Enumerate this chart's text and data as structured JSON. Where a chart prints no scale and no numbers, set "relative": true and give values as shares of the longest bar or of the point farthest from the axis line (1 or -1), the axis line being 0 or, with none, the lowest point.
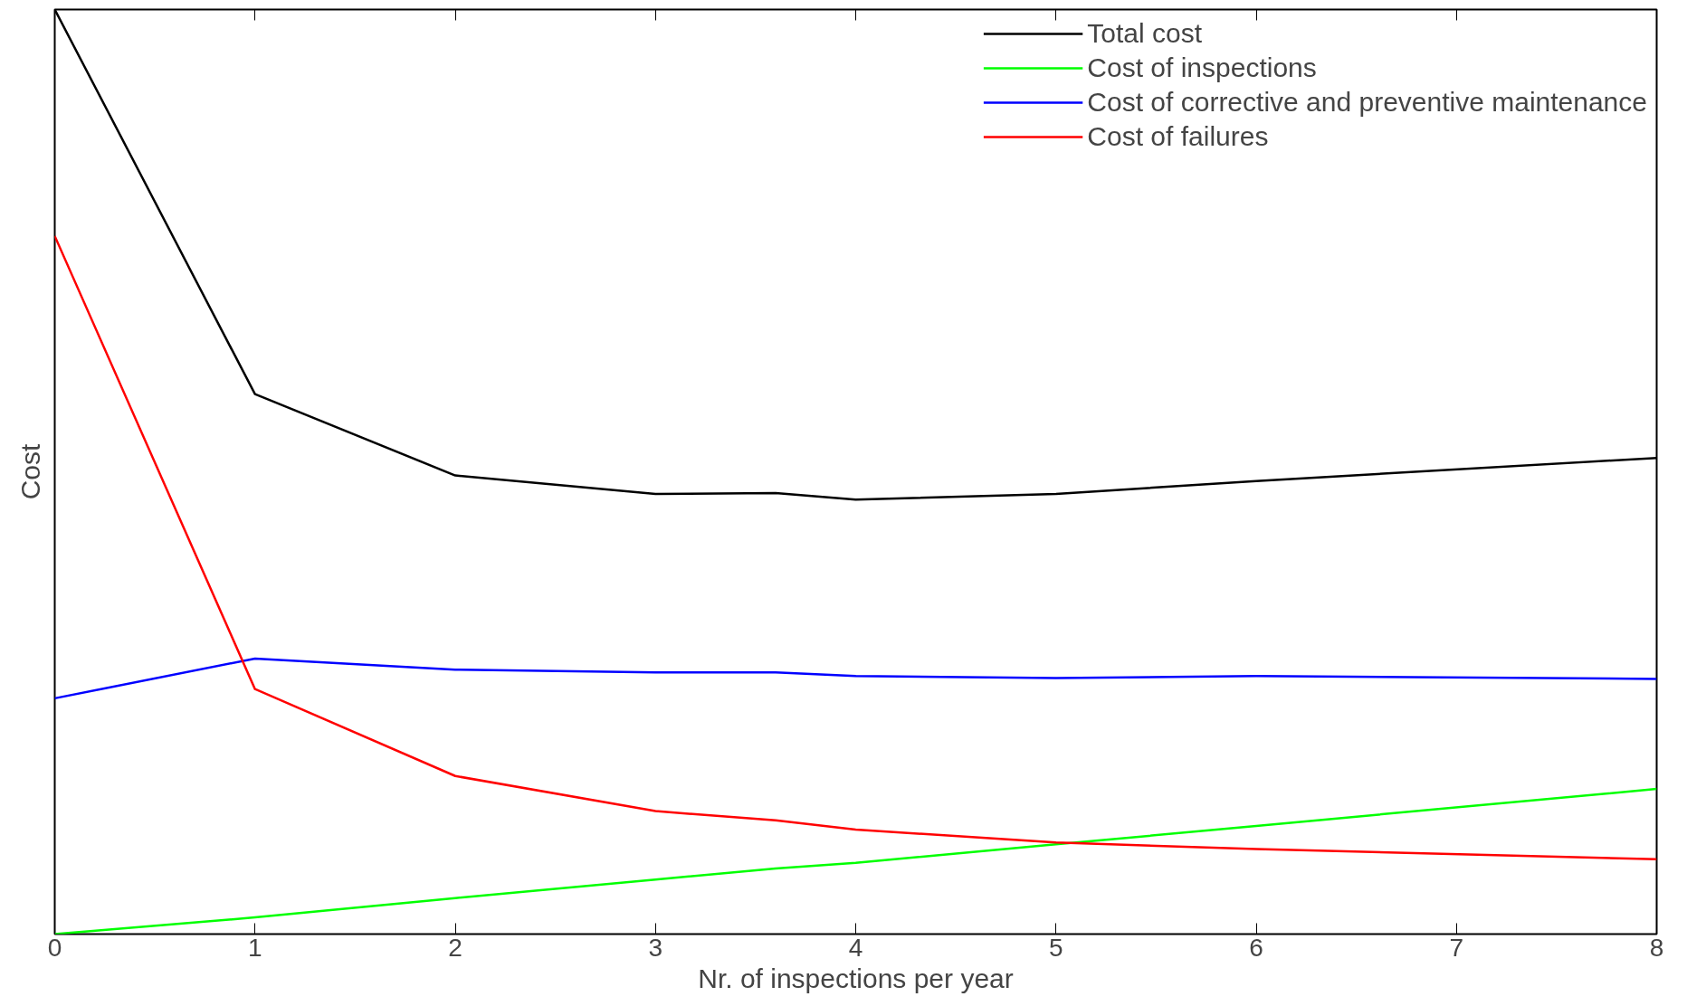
{
  "chart_data": {
    "type": "line",
    "relative": true,
    "xlabel": "Nr. of inspections per year",
    "ylabel": "Cost",
    "x": [
      0,
      1,
      2,
      3,
      3.6,
      4,
      5,
      6,
      8
    ],
    "xlim": [
      0,
      8
    ],
    "xticks": [
      0,
      1,
      2,
      3,
      4,
      5,
      6,
      7,
      8
    ],
    "grid": false,
    "legend": "top right",
    "marker": "none",
    "line_style": "solid",
    "series": [
      {
        "name": "Total cost",
        "color": "#000000",
        "values": [
          1,
          0.584,
          0.496,
          0.476,
          0.477,
          0.47,
          0.476,
          0.49,
          0.515
        ]
      },
      {
        "name": "Cost of inspections",
        "color": "#00ff00",
        "values": [
          0,
          0.018,
          0.039,
          0.059,
          0.071,
          0.077,
          0.097,
          0.117,
          0.157
        ]
      },
      {
        "name": "Cost of corrective and preventive maintenance",
        "color": "#0000ff",
        "values": [
          0.255,
          0.298,
          0.286,
          0.283,
          0.283,
          0.279,
          0.277,
          0.279,
          0.276
        ]
      },
      {
        "name": "Cost of failures",
        "color": "#ff0000",
        "values": [
          0.755,
          0.265,
          0.171,
          0.133,
          0.123,
          0.113,
          0.099,
          0.092,
          0.081
        ]
      }
    ]
  }
}
